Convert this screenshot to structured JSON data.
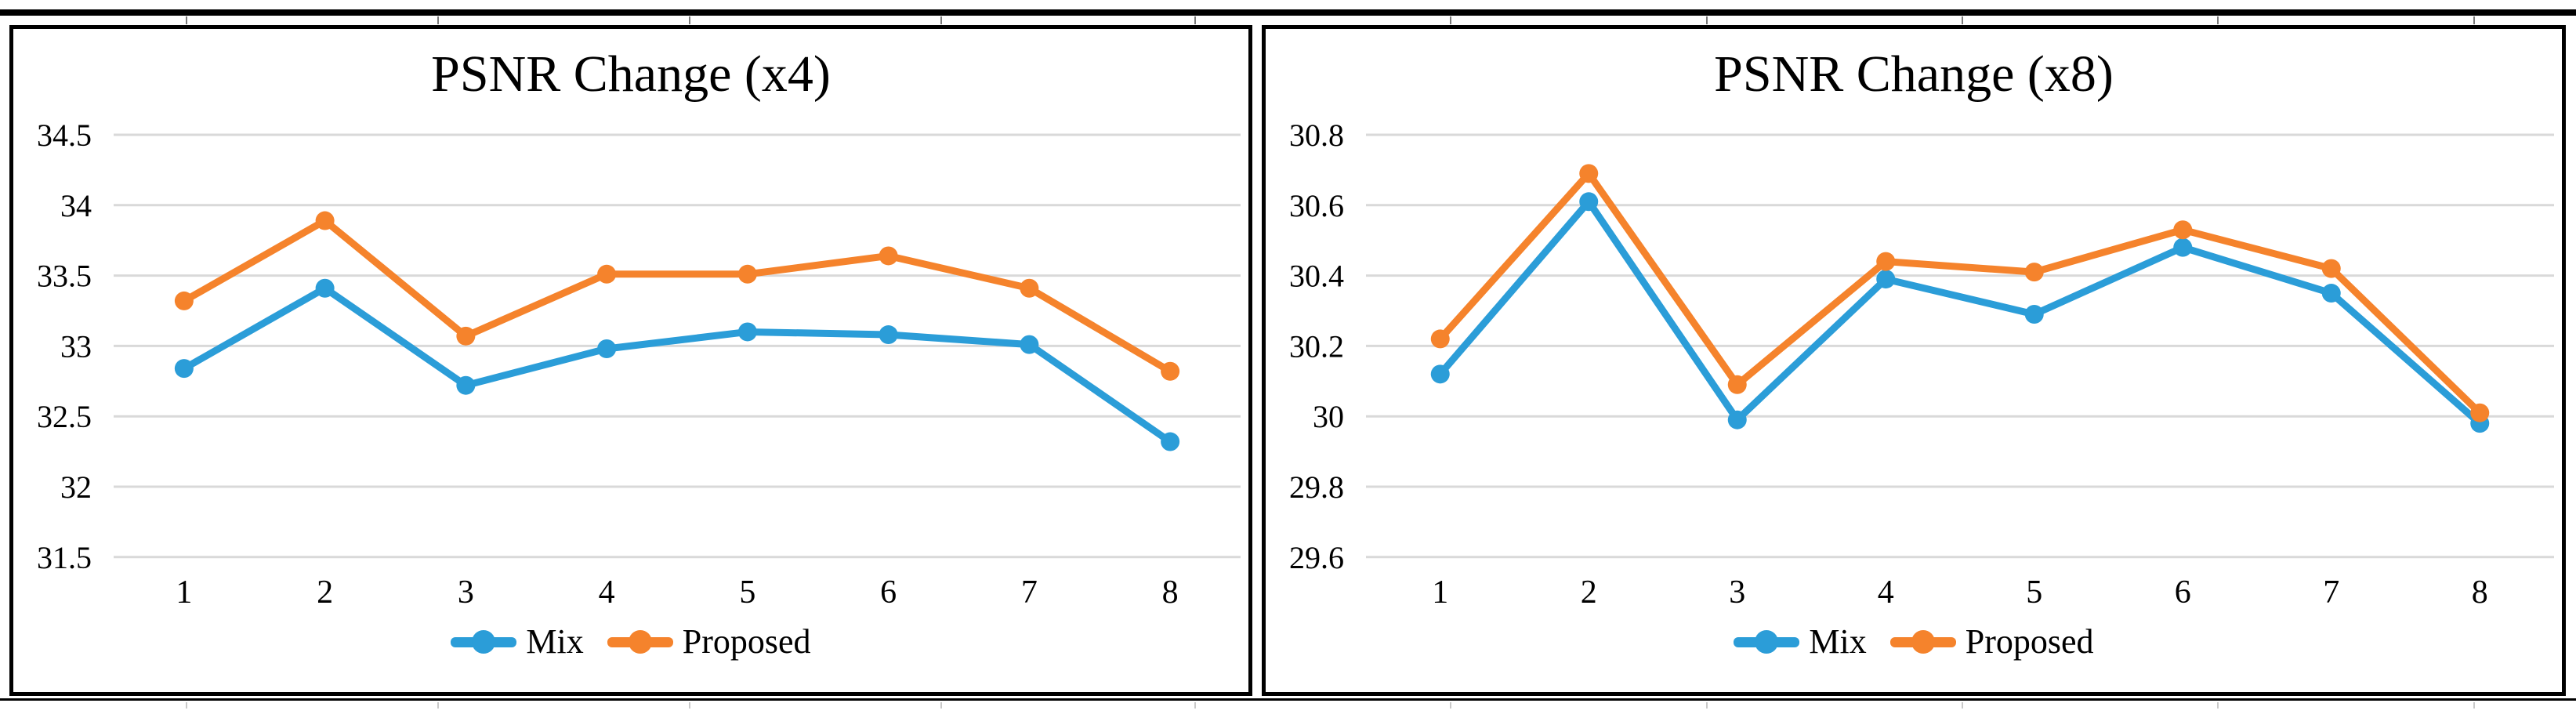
{
  "figure": {
    "background": "#ffffff",
    "border_color": "#000000",
    "gridline_color": "#d9d9d9",
    "text_color": "#000000"
  },
  "chart_data": [
    {
      "type": "line",
      "title": "PSNR Change (x4)",
      "xlabel": "",
      "ylabel": "",
      "categories": [
        "1",
        "2",
        "3",
        "4",
        "5",
        "6",
        "7",
        "8"
      ],
      "ylim": [
        31.5,
        34.5
      ],
      "ytick_step": 0.5,
      "ytick_labels": [
        "34.5",
        "34",
        "33.5",
        "33",
        "32.5",
        "32",
        "31.5"
      ],
      "grid": "horizontal",
      "grid_color": "#d9d9d9",
      "legend_position": "bottom",
      "marker": "circle",
      "series": [
        {
          "name": "Mix",
          "color": "#2b9dd8",
          "values": [
            32.84,
            33.41,
            32.72,
            32.98,
            33.1,
            33.08,
            33.01,
            32.32
          ]
        },
        {
          "name": "Proposed",
          "color": "#f5832c",
          "values": [
            33.32,
            33.89,
            33.07,
            33.51,
            33.51,
            33.64,
            33.41,
            32.82
          ]
        }
      ]
    },
    {
      "type": "line",
      "title": "PSNR Change (x8)",
      "xlabel": "",
      "ylabel": "",
      "categories": [
        "1",
        "2",
        "3",
        "4",
        "5",
        "6",
        "7",
        "8"
      ],
      "ylim": [
        29.6,
        30.8
      ],
      "ytick_step": 0.2,
      "ytick_labels": [
        "30.8",
        "30.6",
        "30.4",
        "30.2",
        "30",
        "29.8",
        "29.6"
      ],
      "grid": "horizontal",
      "grid_color": "#d9d9d9",
      "legend_position": "bottom",
      "marker": "circle",
      "series": [
        {
          "name": "Mix",
          "color": "#2b9dd8",
          "values": [
            30.12,
            30.61,
            29.99,
            30.39,
            30.29,
            30.48,
            30.35,
            29.98
          ]
        },
        {
          "name": "Proposed",
          "color": "#f5832c",
          "values": [
            30.22,
            30.69,
            30.09,
            30.44,
            30.41,
            30.53,
            30.42,
            30.01
          ]
        }
      ]
    }
  ]
}
